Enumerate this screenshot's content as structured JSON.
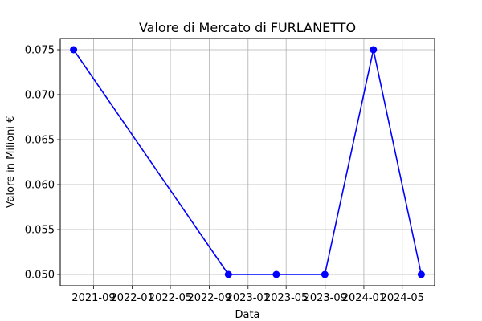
{
  "chart_data": {
    "type": "line",
    "title": "Valore di Mercato di FURLANETTO",
    "xlabel": "Data",
    "ylabel": "Valore in Milioni €",
    "x": [
      "2021-06-30",
      "2022-10-31",
      "2023-03-31",
      "2023-08-31",
      "2024-01-31",
      "2024-06-30"
    ],
    "series": [
      {
        "values": [
          0.075,
          0.05,
          0.05,
          0.05,
          0.075,
          0.05
        ],
        "color": "#0000ff",
        "marker": "circle"
      }
    ],
    "xticks": [
      {
        "date": "2021-09-01",
        "label": "2021-09"
      },
      {
        "date": "2022-01-01",
        "label": "2022-01"
      },
      {
        "date": "2022-05-01",
        "label": "2022-05"
      },
      {
        "date": "2022-09-01",
        "label": "2022-09"
      },
      {
        "date": "2023-01-01",
        "label": "2023-01"
      },
      {
        "date": "2023-05-01",
        "label": "2023-05"
      },
      {
        "date": "2023-09-01",
        "label": "2023-09"
      },
      {
        "date": "2024-01-01",
        "label": "2024-01"
      },
      {
        "date": "2024-05-01",
        "label": "2024-05"
      }
    ],
    "yticks": [
      {
        "value": 0.05,
        "label": "0.050"
      },
      {
        "value": 0.055,
        "label": "0.055"
      },
      {
        "value": 0.06,
        "label": "0.060"
      },
      {
        "value": 0.065,
        "label": "0.065"
      },
      {
        "value": 0.07,
        "label": "0.070"
      },
      {
        "value": 0.075,
        "label": "0.075"
      }
    ],
    "xlim": [
      "2021-05-19",
      "2024-08-11"
    ],
    "ylim": [
      0.04875,
      0.07625
    ],
    "grid": true,
    "legend": "none"
  }
}
